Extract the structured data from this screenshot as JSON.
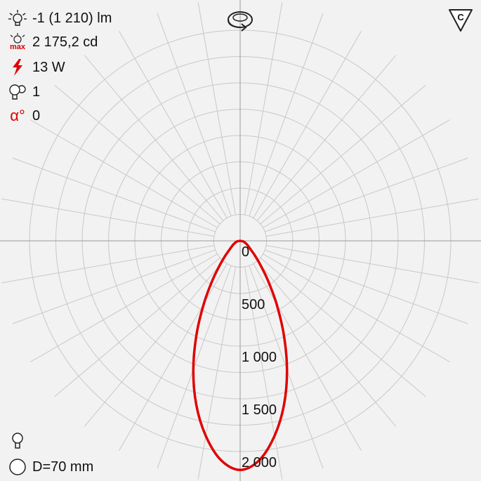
{
  "info": {
    "flux": "-1 (1 210) lm",
    "max_intensity": "2 175,2 cd",
    "power": "13 W",
    "lamps": "1",
    "alpha": "0",
    "max_badge": "max",
    "alpha_symbol": "α°"
  },
  "footer": {
    "diameter": "D=70 mm"
  },
  "corner_badge": {
    "label": "C"
  },
  "colors": {
    "curve": "#e00000",
    "grid": "#c8c8c8",
    "axis": "#9a9a9a",
    "accent_red": "#e00000"
  },
  "chart_data": {
    "type": "polar",
    "unit": "cd",
    "r_max": 2175.2,
    "ring_labels": [
      "0",
      "500",
      "1 000",
      "1 500",
      "2 000"
    ],
    "ring_values": [
      250,
      500,
      750,
      1000,
      1250,
      1500,
      1750,
      2000
    ],
    "spoke_step_deg": 10,
    "series": [
      {
        "angles_deg": [
          0,
          5,
          10,
          15,
          20,
          25,
          30,
          35,
          40,
          45,
          50,
          60,
          70,
          80,
          90
        ],
        "values": [
          2175,
          2090,
          1880,
          1610,
          1300,
          980,
          690,
          460,
          300,
          200,
          135,
          80,
          50,
          30,
          0
        ]
      }
    ]
  }
}
